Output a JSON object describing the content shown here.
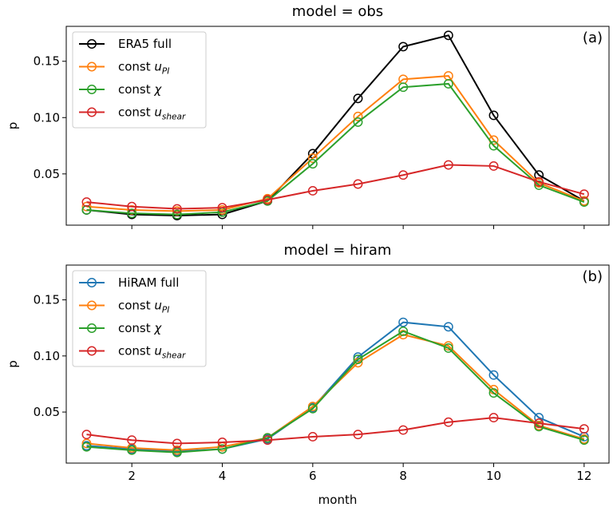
{
  "chart_data": [
    {
      "type": "line",
      "title": "model = obs",
      "panel_label": "(a)",
      "xlabel": "",
      "ylabel": "p",
      "xlim": [
        0.55,
        12.55
      ],
      "ylim": [
        0.0045,
        0.181
      ],
      "yticks": [
        0.05,
        0.1,
        0.15
      ],
      "ytick_labels": [
        "0.05",
        "0.10",
        "0.15"
      ],
      "xticks": [
        2,
        4,
        6,
        8,
        10,
        12
      ],
      "xtick_labels": [],
      "legend_position": "top-left",
      "x": [
        1,
        2,
        3,
        4,
        5,
        6,
        7,
        8,
        9,
        10,
        11,
        12
      ],
      "series": [
        {
          "name": "ERA5 full",
          "label_main": "ERA5 full",
          "label_sub": "",
          "color": "#000000",
          "values": [
            0.018,
            0.014,
            0.013,
            0.014,
            0.026,
            0.068,
            0.117,
            0.163,
            0.173,
            0.102,
            0.049,
            0.026
          ]
        },
        {
          "name": "const u_PI",
          "label_main": "const ",
          "label_italic": "u",
          "label_sub": "PI",
          "color": "#ff7f0e",
          "values": [
            0.021,
            0.018,
            0.017,
            0.018,
            0.028,
            0.064,
            0.101,
            0.134,
            0.137,
            0.08,
            0.042,
            0.026
          ]
        },
        {
          "name": "const χ",
          "label_main": "const ",
          "label_italic": "χ",
          "label_sub": "",
          "color": "#2ca02c",
          "values": [
            0.018,
            0.015,
            0.014,
            0.016,
            0.026,
            0.059,
            0.096,
            0.127,
            0.13,
            0.075,
            0.04,
            0.025
          ]
        },
        {
          "name": "const u_shear",
          "label_main": "const ",
          "label_italic": "u",
          "label_sub": "shear",
          "color": "#d62728",
          "values": [
            0.025,
            0.021,
            0.019,
            0.02,
            0.027,
            0.035,
            0.041,
            0.049,
            0.058,
            0.057,
            0.043,
            0.032
          ]
        }
      ]
    },
    {
      "type": "line",
      "title": "model = hiram",
      "panel_label": "(b)",
      "xlabel": "month",
      "ylabel": "p",
      "xlim": [
        0.55,
        12.55
      ],
      "ylim": [
        0.0045,
        0.181
      ],
      "yticks": [
        0.05,
        0.1,
        0.15
      ],
      "ytick_labels": [
        "0.05",
        "0.10",
        "0.15"
      ],
      "xticks": [
        2,
        4,
        6,
        8,
        10,
        12
      ],
      "xtick_labels": [
        "2",
        "4",
        "6",
        "8",
        "10",
        "12"
      ],
      "legend_position": "top-left",
      "x": [
        1,
        2,
        3,
        4,
        5,
        6,
        7,
        8,
        9,
        10,
        11,
        12
      ],
      "series": [
        {
          "name": "HiRAM full",
          "label_main": "HiRAM full",
          "label_sub": "",
          "color": "#1f77b4",
          "values": [
            0.02,
            0.017,
            0.015,
            0.017,
            0.026,
            0.054,
            0.099,
            0.13,
            0.126,
            0.083,
            0.045,
            0.028
          ]
        },
        {
          "name": "const u_PI",
          "label_main": "const ",
          "label_italic": "u",
          "label_sub": "PI",
          "color": "#ff7f0e",
          "values": [
            0.022,
            0.018,
            0.016,
            0.019,
            0.027,
            0.055,
            0.094,
            0.119,
            0.109,
            0.07,
            0.038,
            0.026
          ]
        },
        {
          "name": "const χ",
          "label_main": "const ",
          "label_italic": "χ",
          "label_sub": "",
          "color": "#2ca02c",
          "values": [
            0.019,
            0.016,
            0.014,
            0.017,
            0.027,
            0.053,
            0.097,
            0.122,
            0.107,
            0.067,
            0.037,
            0.025
          ]
        },
        {
          "name": "const u_shear",
          "label_main": "const ",
          "label_italic": "u",
          "label_sub": "shear",
          "color": "#d62728",
          "values": [
            0.03,
            0.025,
            0.022,
            0.023,
            0.025,
            0.028,
            0.03,
            0.034,
            0.041,
            0.045,
            0.04,
            0.035
          ]
        }
      ]
    }
  ]
}
